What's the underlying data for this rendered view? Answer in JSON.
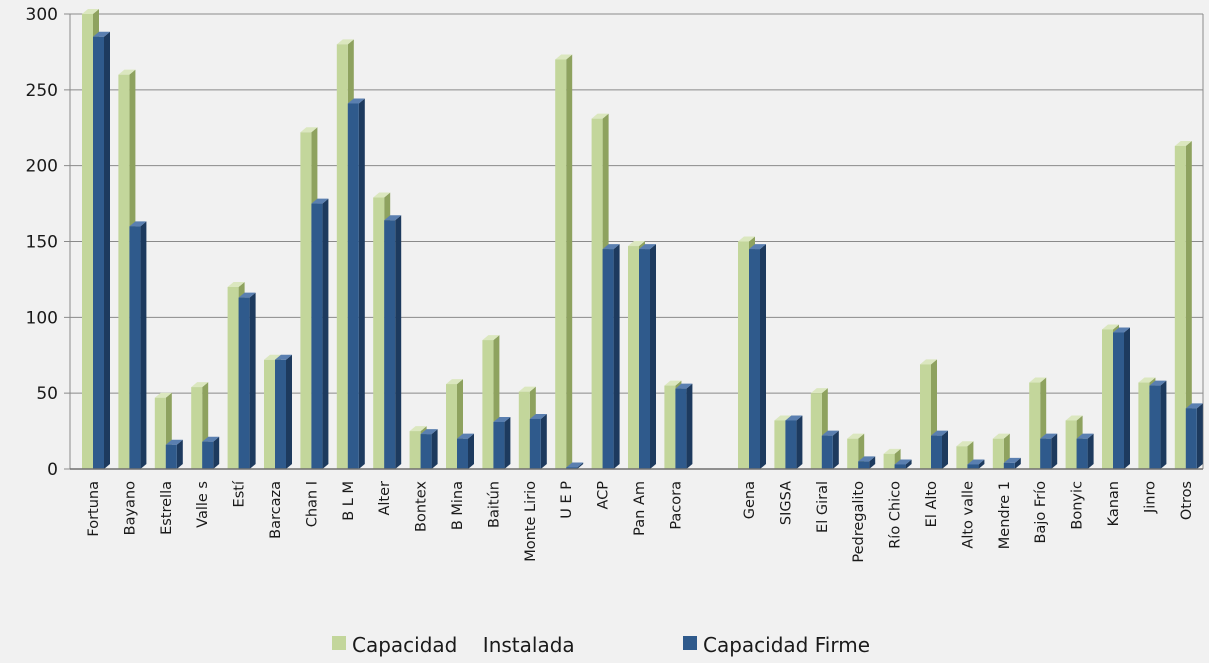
{
  "colors": {
    "background": "#f1f1f1",
    "plot_area": "#f1f1f1",
    "gridline": "#8a8a8a",
    "series1_front": "#c3d69b",
    "series1_side": "#8ea25f",
    "series1_top": "#dbe7bf",
    "series2_front": "#2f5a8c",
    "series2_side": "#1d3a5e",
    "series2_top": "#5a7fb0"
  },
  "chart_data": {
    "type": "bar",
    "title": "",
    "xlabel": "",
    "ylabel": "",
    "ylim": [
      0,
      300
    ],
    "yticks": [
      0,
      50,
      100,
      150,
      200,
      250,
      300
    ],
    "grid": true,
    "legend_position": "bottom",
    "categories": [
      "Fortuna",
      "Bayano",
      "Estrella",
      "Valle s",
      "Estí",
      "Barcaza",
      "Chan I",
      "B L M",
      "Alter",
      "Bontex",
      "B Mina",
      "Baitún",
      "Monte Lirio",
      "U E P",
      "ACP",
      "Pan Am",
      "Pacora",
      "Gena",
      "SIGSA",
      "El Giral",
      "Pedregalito",
      "Río Chico",
      "El Alto",
      "Alto valle",
      "Mendre 1",
      "Bajo Frío",
      "Bonyic",
      "Kanan",
      "Jinro",
      "Otros"
    ],
    "series": [
      {
        "name": "Capacidad    Instalada",
        "values": [
          300,
          260,
          47,
          54,
          120,
          72,
          222,
          280,
          179,
          25,
          56,
          85,
          51,
          270,
          231,
          147,
          55,
          150,
          32,
          50,
          20,
          10,
          69,
          15,
          20,
          57,
          32,
          92,
          57,
          213
        ]
      },
      {
        "name": "Capacidad Firme",
        "values": [
          285,
          160,
          16,
          18,
          113,
          72,
          175,
          241,
          164,
          23,
          20,
          31,
          33,
          1,
          145,
          145,
          53,
          145,
          32,
          22,
          5,
          3,
          22,
          3,
          4,
          20,
          20,
          90,
          55,
          40
        ]
      }
    ]
  }
}
